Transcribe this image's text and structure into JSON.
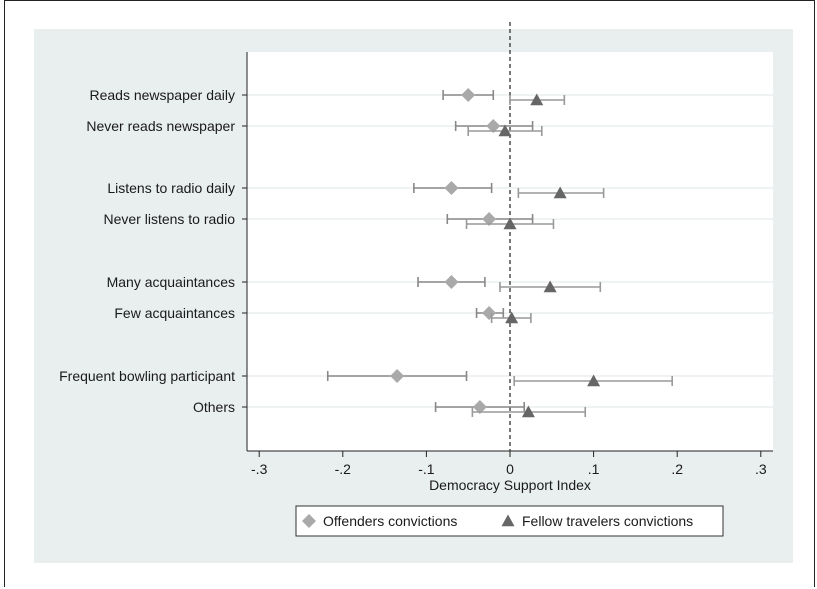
{
  "chart_data": {
    "type": "scatter",
    "subtype": "coefficient-plot-with-confidence-intervals",
    "xlabel": "Democracy Support Index",
    "xlim": [
      -0.3,
      0.3
    ],
    "xticks": [
      -0.3,
      -0.2,
      -0.1,
      0,
      0.1,
      0.2,
      0.3
    ],
    "xtick_labels": [
      "-.3",
      "-.2",
      "-.1",
      "0",
      ".1",
      ".2",
      ".3"
    ],
    "reference_line": {
      "x": 0,
      "style": "dashed"
    },
    "grid": true,
    "legend_position": "bottom",
    "categories": [
      "Reads newspaper daily",
      "Never reads newspaper",
      "Listens to radio daily",
      "Never listens to radio",
      "Many acquaintances",
      "Few acquaintances",
      "Frequent bowling participant",
      "Others"
    ],
    "category_groups": [
      [
        0,
        1
      ],
      [
        2,
        3
      ],
      [
        4,
        5
      ],
      [
        6,
        7
      ]
    ],
    "series": [
      {
        "name": "Offenders convictions",
        "marker": "diamond",
        "color": "#a9a9a9",
        "values": [
          -0.05,
          -0.02,
          -0.07,
          -0.025,
          -0.07,
          -0.025,
          -0.135,
          -0.036
        ],
        "ci_low": [
          -0.08,
          -0.065,
          -0.115,
          -0.075,
          -0.11,
          -0.04,
          -0.218,
          -0.089
        ],
        "ci_high": [
          -0.02,
          0.027,
          -0.022,
          0.027,
          -0.03,
          -0.008,
          -0.052,
          0.017
        ]
      },
      {
        "name": "Fellow travelers convictions",
        "marker": "triangle",
        "color": "#666666",
        "values": [
          0.032,
          -0.006,
          0.06,
          0.0,
          0.048,
          0.002,
          0.1,
          0.022
        ],
        "ci_low": [
          0.0,
          -0.05,
          0.01,
          -0.052,
          -0.012,
          -0.022,
          0.005,
          -0.045
        ],
        "ci_high": [
          0.065,
          0.038,
          0.112,
          0.052,
          0.108,
          0.025,
          0.194,
          0.09
        ]
      }
    ]
  }
}
